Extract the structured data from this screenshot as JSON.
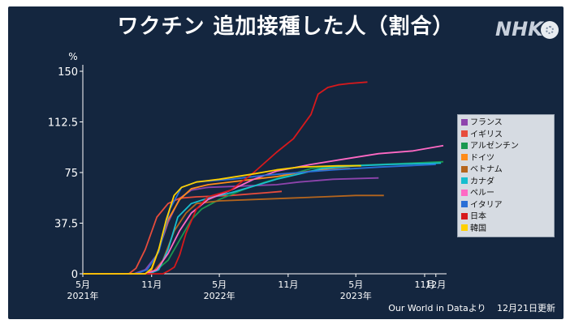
{
  "header": {
    "title": "ワクチン 追加接種した人（割合）",
    "logo": "NHK"
  },
  "footer": {
    "source": "Our World in Dataより",
    "updated": "12月21日更新"
  },
  "chart_data": {
    "type": "line",
    "ylabel": "%",
    "ylim": [
      0,
      150
    ],
    "y_ticks": [
      "0",
      "37.5",
      "75",
      "112.5",
      "150"
    ],
    "y_tick_values": [
      0,
      37.5,
      75,
      112.5,
      150
    ],
    "x_ticks": [
      {
        "month": "5月",
        "year": "2021年",
        "date": "2021-05-01"
      },
      {
        "month": "11月",
        "year": "",
        "date": "2021-11-01"
      },
      {
        "month": "5月",
        "year": "2022年",
        "date": "2022-05-01"
      },
      {
        "month": "11月",
        "year": "",
        "date": "2022-11-01"
      },
      {
        "month": "5月",
        "year": "2023年",
        "date": "2023-05-01"
      },
      {
        "month": "11月",
        "year": "",
        "date": "2023-11-01"
      },
      {
        "month": "12月",
        "year": "",
        "date": "2023-12-01"
      }
    ],
    "xlim": [
      "2021-05-01",
      "2023-12-21"
    ],
    "grid": false,
    "legend": "right",
    "series": [
      {
        "name": "フランス",
        "color": "#8e44ad",
        "points": [
          [
            "2021-05-01",
            0
          ],
          [
            "2021-09-15",
            0
          ],
          [
            "2021-10-15",
            3
          ],
          [
            "2021-11-15",
            14
          ],
          [
            "2021-12-15",
            38
          ],
          [
            "2022-01-15",
            56
          ],
          [
            "2022-02-15",
            62
          ],
          [
            "2022-04-01",
            64
          ],
          [
            "2022-07-01",
            65
          ],
          [
            "2022-10-01",
            66
          ],
          [
            "2022-12-01",
            68
          ],
          [
            "2023-03-01",
            70
          ],
          [
            "2023-07-01",
            71
          ]
        ]
      },
      {
        "name": "イギリス",
        "color": "#e74c3c",
        "points": [
          [
            "2021-05-01",
            0
          ],
          [
            "2021-09-01",
            0
          ],
          [
            "2021-09-20",
            4
          ],
          [
            "2021-10-15",
            18
          ],
          [
            "2021-11-15",
            42
          ],
          [
            "2021-12-15",
            52
          ],
          [
            "2022-01-15",
            56
          ],
          [
            "2022-03-01",
            57
          ],
          [
            "2022-06-01",
            58
          ],
          [
            "2022-09-01",
            60
          ],
          [
            "2022-10-15",
            61
          ]
        ]
      },
      {
        "name": "アルゼンチン",
        "color": "#1a9850",
        "points": [
          [
            "2021-05-01",
            0
          ],
          [
            "2021-10-15",
            0
          ],
          [
            "2021-11-15",
            3
          ],
          [
            "2021-12-15",
            10
          ],
          [
            "2022-01-15",
            25
          ],
          [
            "2022-02-15",
            40
          ],
          [
            "2022-03-15",
            48
          ],
          [
            "2022-05-01",
            55
          ],
          [
            "2022-07-01",
            62
          ],
          [
            "2022-09-01",
            68
          ],
          [
            "2022-11-01",
            73
          ],
          [
            "2023-01-01",
            78
          ],
          [
            "2023-04-01",
            80
          ],
          [
            "2023-07-01",
            81
          ],
          [
            "2023-10-01",
            82
          ],
          [
            "2023-12-21",
            83
          ]
        ]
      },
      {
        "name": "ドイツ",
        "color": "#ff8c1a",
        "points": [
          [
            "2021-05-01",
            0
          ],
          [
            "2021-10-15",
            0
          ],
          [
            "2021-11-01",
            3
          ],
          [
            "2021-11-20",
            18
          ],
          [
            "2021-12-15",
            40
          ],
          [
            "2022-01-15",
            55
          ],
          [
            "2022-02-15",
            63
          ],
          [
            "2022-04-01",
            66
          ],
          [
            "2022-07-01",
            69
          ],
          [
            "2022-10-01",
            72
          ],
          [
            "2022-12-01",
            75
          ],
          [
            "2023-02-01",
            77
          ],
          [
            "2023-04-15",
            78
          ]
        ]
      },
      {
        "name": "ベトナム",
        "color": "#b5651d",
        "points": [
          [
            "2021-05-01",
            0
          ],
          [
            "2021-11-01",
            0
          ],
          [
            "2021-12-01",
            10
          ],
          [
            "2022-01-01",
            32
          ],
          [
            "2022-02-01",
            45
          ],
          [
            "2022-03-01",
            52
          ],
          [
            "2022-05-01",
            54
          ],
          [
            "2022-08-01",
            55
          ],
          [
            "2022-11-01",
            56
          ],
          [
            "2023-02-01",
            57
          ],
          [
            "2023-05-01",
            58
          ],
          [
            "2023-07-15",
            58
          ]
        ]
      },
      {
        "name": "カナダ",
        "color": "#17becf",
        "points": [
          [
            "2021-05-01",
            0
          ],
          [
            "2021-10-25",
            0
          ],
          [
            "2021-11-20",
            3
          ],
          [
            "2021-12-15",
            18
          ],
          [
            "2022-01-10",
            42
          ],
          [
            "2022-02-15",
            52
          ],
          [
            "2022-04-01",
            56
          ],
          [
            "2022-06-01",
            60
          ],
          [
            "2022-08-01",
            65
          ],
          [
            "2022-10-01",
            70
          ],
          [
            "2022-12-01",
            74
          ],
          [
            "2023-02-01",
            78
          ],
          [
            "2023-05-01",
            80
          ],
          [
            "2023-08-01",
            81
          ],
          [
            "2023-12-15",
            82
          ]
        ]
      },
      {
        "name": "ペルー",
        "color": "#ff69c4",
        "points": [
          [
            "2021-05-01",
            0
          ],
          [
            "2021-10-15",
            0
          ],
          [
            "2021-11-15",
            3
          ],
          [
            "2021-12-15",
            15
          ],
          [
            "2022-01-15",
            32
          ],
          [
            "2022-02-15",
            45
          ],
          [
            "2022-04-01",
            55
          ],
          [
            "2022-06-01",
            62
          ],
          [
            "2022-08-01",
            70
          ],
          [
            "2022-10-01",
            76
          ],
          [
            "2023-01-01",
            81
          ],
          [
            "2023-04-01",
            85
          ],
          [
            "2023-07-01",
            89
          ],
          [
            "2023-10-01",
            91
          ],
          [
            "2023-12-21",
            95
          ]
        ]
      },
      {
        "name": "イタリア",
        "color": "#2a6fd6",
        "points": [
          [
            "2021-05-01",
            0
          ],
          [
            "2021-09-20",
            0
          ],
          [
            "2021-10-20",
            3
          ],
          [
            "2021-11-20",
            16
          ],
          [
            "2021-12-20",
            48
          ],
          [
            "2022-01-20",
            64
          ],
          [
            "2022-03-01",
            68
          ],
          [
            "2022-06-01",
            70
          ],
          [
            "2022-09-01",
            73
          ],
          [
            "2022-12-01",
            75
          ],
          [
            "2023-03-01",
            77
          ],
          [
            "2023-07-01",
            79
          ],
          [
            "2023-12-01",
            81
          ]
        ]
      },
      {
        "name": "日本",
        "color": "#d7191c",
        "points": [
          [
            "2021-05-01",
            0
          ],
          [
            "2021-12-01",
            0
          ],
          [
            "2021-12-15",
            2
          ],
          [
            "2022-01-01",
            5
          ],
          [
            "2022-01-15",
            14
          ],
          [
            "2022-02-01",
            30
          ],
          [
            "2022-03-01",
            48
          ],
          [
            "2022-04-01",
            57
          ],
          [
            "2022-06-01",
            62
          ],
          [
            "2022-08-01",
            75
          ],
          [
            "2022-10-01",
            90
          ],
          [
            "2022-11-15",
            100
          ],
          [
            "2023-01-01",
            118
          ],
          [
            "2023-01-20",
            133
          ],
          [
            "2023-02-15",
            138
          ],
          [
            "2023-03-15",
            140
          ],
          [
            "2023-04-15",
            141
          ],
          [
            "2023-06-01",
            142
          ]
        ]
      },
      {
        "name": "韓国",
        "color": "#ffd000",
        "points": [
          [
            "2021-05-01",
            0
          ],
          [
            "2021-10-15",
            0
          ],
          [
            "2021-11-01",
            4
          ],
          [
            "2021-11-20",
            18
          ],
          [
            "2021-12-10",
            40
          ],
          [
            "2021-12-31",
            58
          ],
          [
            "2022-01-20",
            64
          ],
          [
            "2022-03-01",
            68
          ],
          [
            "2022-05-01",
            70
          ],
          [
            "2022-08-01",
            74
          ],
          [
            "2022-10-01",
            77
          ],
          [
            "2022-12-01",
            79
          ],
          [
            "2023-03-15",
            80
          ],
          [
            "2023-05-15",
            80
          ]
        ]
      }
    ]
  }
}
